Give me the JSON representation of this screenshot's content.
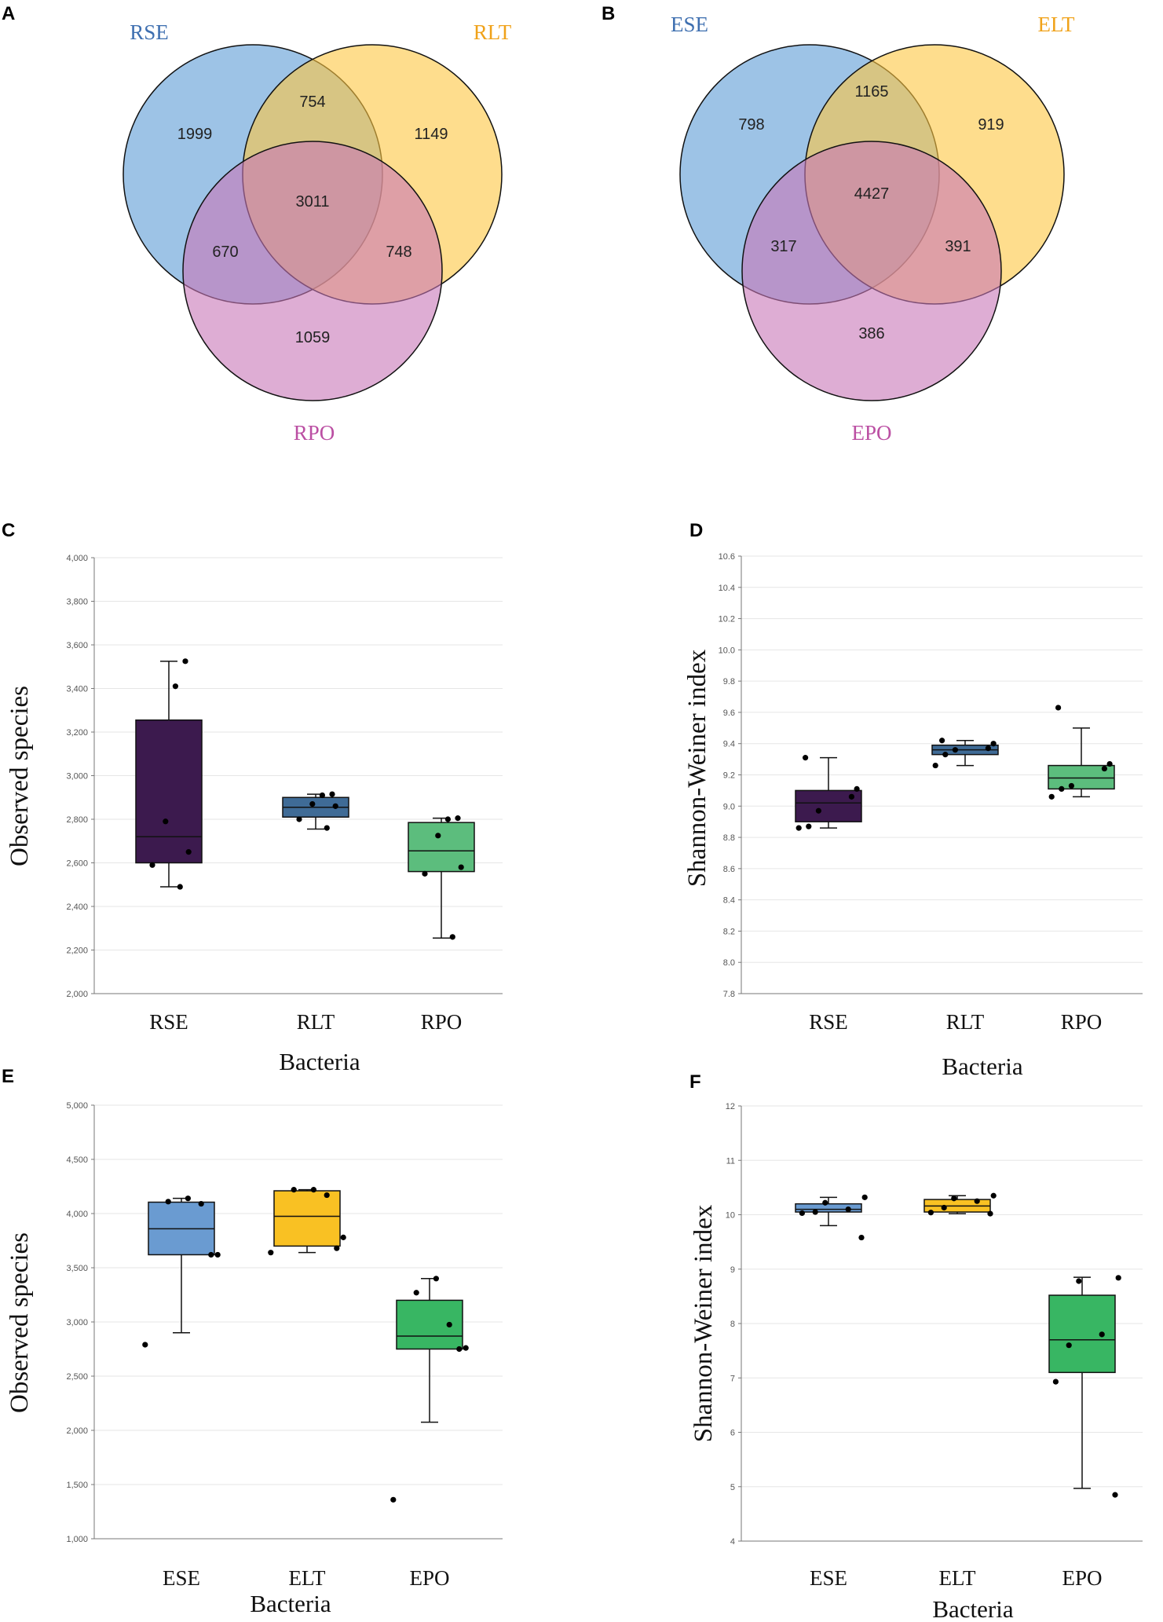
{
  "panels": {
    "a": "A",
    "b": "B",
    "c": "C",
    "d": "D",
    "e": "E",
    "f": "F"
  },
  "colors": {
    "venn_se": "#5b9bd5",
    "venn_lt": "#fdc741",
    "venn_po": "#c877b8",
    "label_se": "#3e6fb0",
    "label_lt": "#f0a21a",
    "label_po": "#bb4fa3",
    "rse": "#3c1a4e",
    "rlt": "#3f6b96",
    "rpo": "#5cbd7d",
    "ese": "#6a9bd1",
    "elt": "#f9c123",
    "epo": "#38b663"
  },
  "chart_data": [
    {
      "id": "A",
      "type": "venn",
      "sets": [
        "RSE",
        "RLT",
        "RPO"
      ],
      "regions": {
        "only_1": 1999,
        "only_2": 1149,
        "only_3": 1059,
        "1_2": 754,
        "1_3": 670,
        "2_3": 748,
        "all": 3011
      }
    },
    {
      "id": "B",
      "type": "venn",
      "sets": [
        "ESE",
        "ELT",
        "EPO"
      ],
      "regions": {
        "only_1": 798,
        "only_2": 919,
        "only_3": 386,
        "1_2": 1165,
        "1_3": 317,
        "2_3": 391,
        "all": 4427
      }
    },
    {
      "id": "C",
      "type": "box",
      "ylabel": "Observed species",
      "xlabel": "Bacteria",
      "ylim": [
        2000,
        4000
      ],
      "yticks": [
        "2,000",
        "2,200",
        "2,400",
        "2,600",
        "2,800",
        "3,000",
        "3,200",
        "3,400",
        "3,600",
        "3,800",
        "4,000"
      ],
      "categories": [
        "RSE",
        "RLT",
        "RPO"
      ],
      "boxes": [
        {
          "min": 2490,
          "q1": 2600,
          "median": 2720,
          "q3": 3255,
          "max": 3525,
          "points": [
            2490,
            2590,
            2650,
            2790,
            3410,
            3525
          ]
        },
        {
          "min": 2755,
          "q1": 2810,
          "median": 2855,
          "q3": 2900,
          "max": 2915,
          "points": [
            2760,
            2800,
            2860,
            2870,
            2910,
            2915
          ]
        },
        {
          "min": 2255,
          "q1": 2560,
          "median": 2655,
          "q3": 2785,
          "max": 2805,
          "points": [
            2260,
            2550,
            2580,
            2725,
            2800,
            2805
          ]
        }
      ]
    },
    {
      "id": "D",
      "type": "box",
      "ylabel": "Shannon-Weiner index",
      "xlabel": "Bacteria",
      "ylim": [
        7.8,
        10.6
      ],
      "yticks": [
        "7.8",
        "8.0",
        "8.2",
        "8.4",
        "8.6",
        "8.8",
        "9.0",
        "9.2",
        "9.4",
        "9.6",
        "9.8",
        "10.0",
        "10.2",
        "10.4",
        "10.6"
      ],
      "categories": [
        "RSE",
        "RLT",
        "RPO"
      ],
      "boxes": [
        {
          "min": 8.86,
          "q1": 8.9,
          "median": 9.02,
          "q3": 9.1,
          "max": 9.31,
          "points": [
            8.86,
            8.87,
            8.97,
            9.06,
            9.11,
            9.31
          ]
        },
        {
          "min": 9.26,
          "q1": 9.33,
          "median": 9.36,
          "q3": 9.39,
          "max": 9.42,
          "points": [
            9.26,
            9.33,
            9.36,
            9.37,
            9.4,
            9.42
          ]
        },
        {
          "min": 9.06,
          "q1": 9.11,
          "median": 9.18,
          "q3": 9.26,
          "max": 9.5,
          "points": [
            9.06,
            9.11,
            9.13,
            9.24,
            9.27,
            9.63
          ]
        }
      ]
    },
    {
      "id": "E",
      "type": "box",
      "ylabel": "Observed species",
      "xlabel": "Bacteria",
      "ylim": [
        1000,
        5000
      ],
      "yticks": [
        "1,000",
        "1,500",
        "2,000",
        "2,500",
        "3,000",
        "3,500",
        "4,000",
        "4,500",
        "5,000"
      ],
      "categories": [
        "ESE",
        "ELT",
        "EPO"
      ],
      "boxes": [
        {
          "min": 2900,
          "q1": 3620,
          "median": 3860,
          "q3": 4105,
          "max": 4140,
          "points": [
            2790,
            3620,
            3620,
            4090,
            4110,
            4140
          ]
        },
        {
          "min": 3640,
          "q1": 3700,
          "median": 3975,
          "q3": 4210,
          "max": 4220,
          "points": [
            3640,
            3680,
            3780,
            4170,
            4220,
            4220
          ]
        },
        {
          "min": 2075,
          "q1": 2750,
          "median": 2870,
          "q3": 3200,
          "max": 3400,
          "points": [
            1360,
            2750,
            2760,
            2975,
            3270,
            3400
          ]
        }
      ]
    },
    {
      "id": "F",
      "type": "box",
      "ylabel": "Shannon-Weiner index",
      "xlabel": "Bacteria",
      "ylim": [
        4,
        12
      ],
      "yticks": [
        "4",
        "5",
        "6",
        "7",
        "8",
        "9",
        "10",
        "11",
        "12"
      ],
      "categories": [
        "ESE",
        "ELT",
        "EPO"
      ],
      "boxes": [
        {
          "min": 9.8,
          "q1": 10.05,
          "median": 10.1,
          "q3": 10.2,
          "max": 10.32,
          "points": [
            9.58,
            10.03,
            10.05,
            10.1,
            10.22,
            10.32
          ]
        },
        {
          "min": 10.02,
          "q1": 10.05,
          "median": 10.16,
          "q3": 10.28,
          "max": 10.35,
          "points": [
            10.02,
            10.04,
            10.13,
            10.25,
            10.3,
            10.35
          ]
        },
        {
          "min": 4.97,
          "q1": 7.1,
          "median": 7.7,
          "q3": 8.52,
          "max": 8.85,
          "points": [
            4.85,
            6.93,
            7.6,
            7.8,
            8.78,
            8.84
          ]
        }
      ]
    }
  ]
}
